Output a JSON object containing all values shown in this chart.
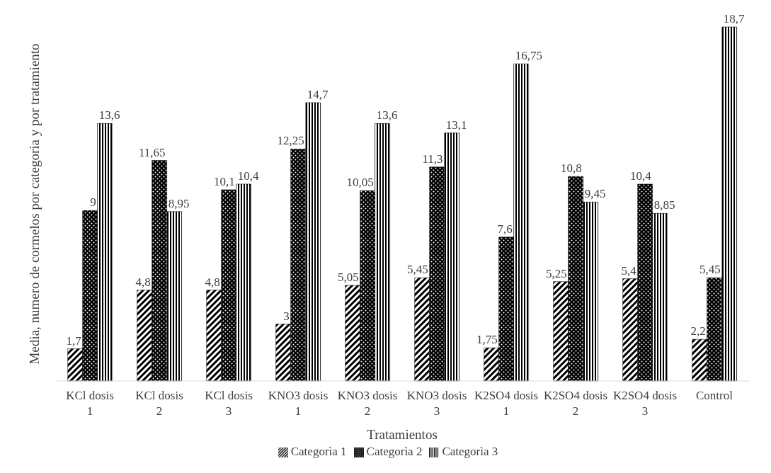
{
  "chart_data": {
    "type": "bar",
    "xlabel": "Tratamientos",
    "ylabel": "Media, numero de cormelos por categoria y por tratamiento",
    "categories": [
      "KCl dosis 1",
      "KCl dosis 2",
      "KCl dosis 3",
      "KNO3 dosis 1",
      "KNO3 dosis 2",
      "KNO3 dosis 3",
      "K2SO4 dosis 1",
      "K2SO4 dosis 2",
      "K2SO4 dosis 3",
      "Control"
    ],
    "series": [
      {
        "name": "Categorìa 1",
        "color": "#000000",
        "values": [
          1.7,
          4.8,
          4.8,
          3,
          5.05,
          5.45,
          1.75,
          5.25,
          5.4,
          2.2
        ],
        "value_labels": [
          "1,7",
          "4,8",
          "4,8",
          "3",
          "5,05",
          "5,45",
          "1,75",
          "5,25",
          "5,4",
          "2,2"
        ]
      },
      {
        "name": "Categorìa 2",
        "color": "#000000",
        "values": [
          9,
          11.65,
          10.1,
          12.25,
          10.05,
          11.3,
          7.6,
          10.8,
          10.4,
          5.45
        ],
        "value_labels": [
          "9",
          "11,65",
          "10,1",
          "12,25",
          "10,05",
          "11,3",
          "7,6",
          "10,8",
          "10,4",
          "5,45"
        ]
      },
      {
        "name": "Categorìa 3",
        "color": "#000000",
        "values": [
          13.6,
          8.95,
          10.4,
          14.7,
          13.6,
          13.1,
          16.75,
          9.45,
          8.85,
          18.7
        ],
        "value_labels": [
          "13,6",
          "8,95",
          "10,4",
          "14,7",
          "13,6",
          "13,1",
          "16,75",
          "9,45",
          "8,85",
          "18,7"
        ]
      }
    ],
    "legend": "bottom",
    "grid": false
  }
}
